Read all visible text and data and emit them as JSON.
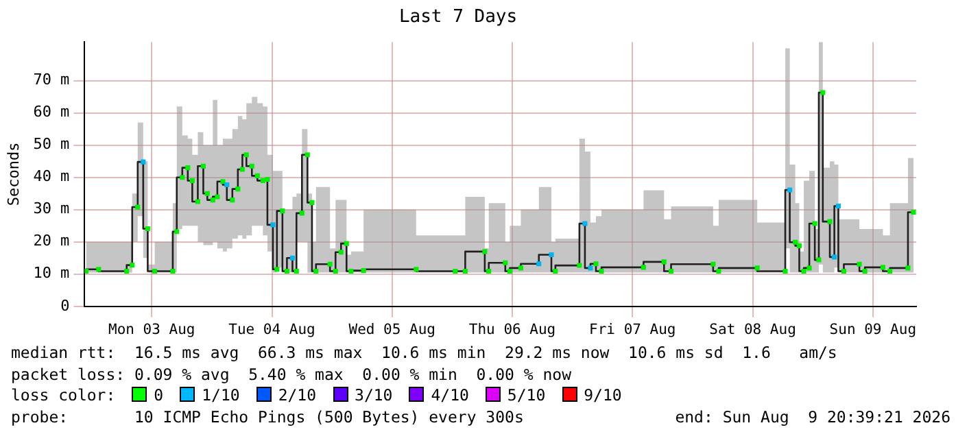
{
  "chart_data": {
    "type": "step",
    "title": "Last 7 Days",
    "ylabel": "Seconds",
    "x": [
      "2026-08-02T22:54",
      "2026-08-03T01:24",
      "2026-08-03T07:00",
      "2026-08-03T08:06",
      "2026-08-03T09:12",
      "2026-08-03T10:18",
      "2026-08-03T11:12",
      "2026-08-03T12:36",
      "2026-08-03T16:12",
      "2026-08-03T17:00",
      "2026-08-03T18:06",
      "2026-08-03T19:12",
      "2026-08-03T20:06",
      "2026-08-03T21:12",
      "2026-08-03T22:18",
      "2026-08-03T23:06",
      "2026-08-04T00:12",
      "2026-08-04T01:06",
      "2026-08-04T02:12",
      "2026-08-04T03:00",
      "2026-08-04T04:06",
      "2026-08-04T05:12",
      "2026-08-04T06:06",
      "2026-08-04T06:54",
      "2026-08-04T08:00",
      "2026-08-04T09:06",
      "2026-08-04T10:12",
      "2026-08-04T11:06",
      "2026-08-04T12:12",
      "2026-08-04T13:00",
      "2026-08-04T14:06",
      "2026-08-04T15:00",
      "2026-08-04T16:06",
      "2026-08-04T16:54",
      "2026-08-04T18:00",
      "2026-08-04T19:06",
      "2026-08-04T20:00",
      "2026-08-04T20:48",
      "2026-08-04T23:36",
      "2026-08-05T00:42",
      "2026-08-05T01:48",
      "2026-08-05T02:54",
      "2026-08-05T03:48",
      "2026-08-05T06:18",
      "2026-08-05T16:48",
      "2026-08-06T00:36",
      "2026-08-06T02:36",
      "2026-08-06T06:30",
      "2026-08-06T07:18",
      "2026-08-06T10:36",
      "2026-08-06T11:30",
      "2026-08-06T13:42",
      "2026-08-06T17:18",
      "2026-08-06T19:48",
      "2026-08-06T20:36",
      "2026-08-07T01:24",
      "2026-08-07T02:30",
      "2026-08-07T03:36",
      "2026-08-07T04:42",
      "2026-08-07T05:48",
      "2026-08-07T14:12",
      "2026-08-07T18:18",
      "2026-08-07T19:42",
      "2026-08-08T04:06",
      "2026-08-08T05:12",
      "2026-08-08T12:54",
      "2026-08-08T18:30",
      "2026-08-08T19:24",
      "2026-08-08T20:30",
      "2026-08-08T21:18",
      "2026-08-08T22:12",
      "2026-08-08T23:18",
      "2026-08-09T00:24",
      "2026-08-09T01:12",
      "2026-08-09T02:00",
      "2026-08-09T03:24",
      "2026-08-09T04:18",
      "2026-08-09T05:06",
      "2026-08-09T06:12",
      "2026-08-09T09:18",
      "2026-08-09T10:24",
      "2026-08-09T14:00",
      "2026-08-09T15:24",
      "2026-08-09T19:00",
      "2026-08-09T20:06"
    ],
    "series": [
      {
        "color": "#202020",
        "marker": "square",
        "values": [
          10.9,
          11.5,
          10.9,
          12.8,
          30.8,
          44.8,
          24.1,
          10.9,
          10.9,
          23.2,
          40,
          43,
          39,
          32.5,
          43.5,
          35,
          33,
          34,
          38.7,
          37.7,
          33,
          36.4,
          42.5,
          47,
          43.5,
          40.5,
          39,
          39.4,
          25.3,
          11.5,
          29.6,
          10.9,
          15,
          10.9,
          28.9,
          47,
          32.2,
          10.9,
          13.1,
          10.9,
          16.8,
          19.5,
          10.9,
          11.1,
          11.5,
          10.9,
          10.9,
          17,
          10.9,
          13.5,
          10.9,
          11.9,
          13.2,
          16,
          10.9,
          12.7,
          25.7,
          11.9,
          13.2,
          10.9,
          12.1,
          13.8,
          10.9,
          13.1,
          10.9,
          11.9,
          10.9,
          36.1,
          19.9,
          18.8,
          10.9,
          11.9,
          25.7,
          14.4,
          66.3,
          26.3,
          15.3,
          31.1,
          10.9,
          13.1,
          10.9,
          12.1,
          10.9,
          11.9,
          29.2
        ],
        "colors": [
          "#00ee00",
          "#00ee00",
          "#00ee00",
          "#00ee00",
          "#00ee00",
          "#00b4f0",
          "#00ee00",
          "#00ee00",
          "#00ee00",
          "#00ee00",
          "#00ee00",
          "#00ee00",
          "#00ee00",
          "#00ee00",
          "#00ee00",
          "#00ee00",
          "#00ee00",
          "#00ee00",
          "#00ee00",
          "#00b4f0",
          "#00ee00",
          "#00ee00",
          "#00ee00",
          "#00ee00",
          "#00ee00",
          "#00ee00",
          "#00ee00",
          "#00ee00",
          "#00b4f0",
          "#00ee00",
          "#00ee00",
          "#00ee00",
          "#00b4f0",
          "#00ee00",
          "#00ee00",
          "#00ee00",
          "#00ee00",
          "#00ee00",
          "#00ee00",
          "#00ee00",
          "#00ee00",
          "#00ee00",
          "#00ee00",
          "#00ee00",
          "#00ee00",
          "#00ee00",
          "#00ee00",
          "#00ee00",
          "#00ee00",
          "#00ee00",
          "#00ee00",
          "#00ee00",
          "#00b4f0",
          "#00b4f0",
          "#00ee00",
          "#00ee00",
          "#00b4f0",
          "#00b4f0",
          "#00ee00",
          "#00ee00",
          "#00ee00",
          "#00ee00",
          "#00ee00",
          "#00ee00",
          "#00ee00",
          "#00ee00",
          "#00ee00",
          "#00b4f0",
          "#00ee00",
          "#00ee00",
          "#00ee00",
          "#00ee00",
          "#00ee00",
          "#00ee00",
          "#00ee00",
          "#00ee00",
          "#00b4f0",
          "#00b4f0",
          "#00ee00",
          "#00ee00",
          "#00ee00",
          "#00ee00",
          "#00ee00",
          "#00ee00",
          "#00ee00"
        ],
        "lower": [
          10.5,
          10.5,
          10.5,
          10.5,
          20,
          28,
          15,
          10.5,
          10.5,
          10.5,
          24,
          25,
          25,
          25,
          20,
          19,
          19,
          20,
          18,
          17,
          18,
          21,
          22,
          21,
          22,
          25,
          25,
          22,
          17,
          10.5,
          12,
          10.5,
          10.5,
          10.5,
          20,
          20,
          10.5,
          10.5,
          10.5,
          10.5,
          10.5,
          10.5,
          10.5,
          10.5,
          10.5,
          10.5,
          10.5,
          10.5,
          10.5,
          10.5,
          10.5,
          10.5,
          10.5,
          10.5,
          10.5,
          10.5,
          10.5,
          10.5,
          10.5,
          10.5,
          10.5,
          10.5,
          10.5,
          10.5,
          10.5,
          10.5,
          10.5,
          18,
          10.5,
          10.5,
          10.5,
          10.5,
          10.5,
          10.5,
          13,
          10.5,
          10.5,
          12,
          10.5,
          10.5,
          10.5,
          10.5,
          10.5,
          10.5,
          10.5
        ],
        "upper": [
          22,
          20,
          20,
          20,
          35,
          57,
          45,
          13,
          20,
          32,
          62,
          53,
          52,
          47,
          54,
          50,
          50,
          64,
          50,
          52,
          52,
          55,
          59,
          58,
          63,
          65,
          63,
          62,
          47,
          42,
          42,
          30,
          30,
          34,
          35,
          55,
          35,
          20,
          37,
          18,
          33,
          33,
          16,
          17,
          30,
          22,
          22,
          34,
          18,
          32,
          20,
          25,
          30,
          37,
          20,
          21,
          52,
          48,
          26,
          28,
          30,
          36,
          27,
          31,
          25,
          33,
          26,
          80,
          44,
          32,
          17,
          39,
          42,
          24,
          82,
          43,
          45,
          44,
          27,
          27,
          24,
          24,
          22,
          32,
          46
        ]
      }
    ],
    "xlim": [
      "2026-08-02T22:36",
      "2026-08-09T20:39"
    ],
    "xticks": [
      {
        "value": "2026-08-03T12:00",
        "label": "Mon 03 Aug"
      },
      {
        "value": "2026-08-04T12:00",
        "label": "Tue 04 Aug"
      },
      {
        "value": "2026-08-05T12:00",
        "label": "Wed 05 Aug"
      },
      {
        "value": "2026-08-06T12:00",
        "label": "Thu 06 Aug"
      },
      {
        "value": "2026-08-07T12:00",
        "label": "Fri 07 Aug"
      },
      {
        "value": "2026-08-08T12:00",
        "label": "Sat 08 Aug"
      },
      {
        "value": "2026-08-09T12:00",
        "label": "Sun 09 Aug"
      }
    ],
    "ylim": [
      0,
      82
    ],
    "yticks": [
      0,
      {
        "value": 10,
        "label": "10 m"
      },
      {
        "value": 20,
        "label": "20 m"
      },
      {
        "value": 30,
        "label": "30 m"
      },
      {
        "value": 40,
        "label": "40 m"
      },
      {
        "value": 50,
        "label": "50 m"
      },
      {
        "value": 60,
        "label": "60 m"
      },
      {
        "value": 70,
        "label": "70 m"
      }
    ],
    "grid": true,
    "annotations": [
      "median rtt:  16.5 ms avg  66.3 ms max  10.6 ms min  29.2 ms now  10.6 ms sd  1.6   am/s",
      "packet loss: 0.09 % avg  5.40 % max  0.00 % min  0.00 % now",
      "loss color:",
      "0",
      "1/10",
      "2/10",
      "3/10",
      "4/10",
      "5/10",
      "9/10",
      "probe:       10 ICMP Echo Pings (500 Bytes) every 300s",
      "end: Sun Aug  9 20:39:21 2026"
    ]
  }
}
